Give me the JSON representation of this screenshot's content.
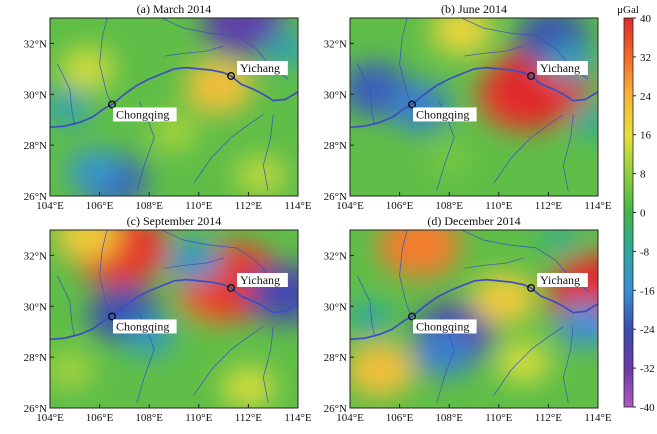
{
  "panels": [
    {
      "id": "a",
      "title": "(a)  March 2014"
    },
    {
      "id": "b",
      "title": "(b)  June 2014"
    },
    {
      "id": "c",
      "title": "(c)  September 2014"
    },
    {
      "id": "d",
      "title": "(d)  December 2014"
    }
  ],
  "axes": {
    "lon_ticks": [
      "104°E",
      "106°E",
      "108°E",
      "110°E",
      "112°E",
      "114°E"
    ],
    "lat_ticks": [
      "32°N",
      "30°N",
      "28°N",
      "26°N"
    ]
  },
  "places": {
    "chongqing": "Chongqing",
    "yichang": "Yichang"
  },
  "colorbar": {
    "unit": "μGal",
    "ticks": [
      "40",
      "32",
      "24",
      "16",
      "8",
      "0",
      "-8",
      "-16",
      "-24",
      "-32",
      "-40"
    ],
    "colors": [
      "#e02a2a",
      "#f26a2a",
      "#f6b43a",
      "#e6e03c",
      "#8fcf3e",
      "#43b649",
      "#2ea8a0",
      "#3a8fd6",
      "#3b4db0",
      "#6a3aa6",
      "#b05cc0"
    ]
  },
  "colors": {
    "field_base": "#5fbe48",
    "river": "#3b4fbf",
    "frame": "#222222"
  },
  "anomalies": [
    [
      {
        "lon": 105.5,
        "lat": 31.0,
        "value": 14
      },
      {
        "lon": 104.7,
        "lat": 29.5,
        "value": -10
      },
      {
        "lon": 106.5,
        "lat": 26.6,
        "value": -22
      },
      {
        "lon": 105.8,
        "lat": 27.0,
        "value": -14
      },
      {
        "lon": 111.8,
        "lat": 32.8,
        "value": -30
      },
      {
        "lon": 113.5,
        "lat": 31.8,
        "value": -10
      },
      {
        "lon": 110.8,
        "lat": 30.3,
        "value": 22
      },
      {
        "lon": 112.5,
        "lat": 26.8,
        "value": 12
      },
      {
        "lon": 109.0,
        "lat": 28.5,
        "value": 10
      }
    ],
    [
      {
        "lon": 105.0,
        "lat": 30.2,
        "value": -22
      },
      {
        "lon": 106.8,
        "lat": 29.5,
        "value": -18
      },
      {
        "lon": 108.5,
        "lat": 32.5,
        "value": 18
      },
      {
        "lon": 111.0,
        "lat": 30.0,
        "value": 36
      },
      {
        "lon": 111.6,
        "lat": 30.3,
        "value": 40
      },
      {
        "lon": 112.2,
        "lat": 32.2,
        "value": -24
      },
      {
        "lon": 112.8,
        "lat": 31.3,
        "value": -12
      },
      {
        "lon": 108.0,
        "lat": 27.5,
        "value": 6
      },
      {
        "lon": 113.7,
        "lat": 29.0,
        "value": -8
      }
    ],
    [
      {
        "lon": 106.8,
        "lat": 32.3,
        "value": 38
      },
      {
        "lon": 105.5,
        "lat": 32.8,
        "value": 20
      },
      {
        "lon": 107.0,
        "lat": 29.7,
        "value": -24
      },
      {
        "lon": 108.0,
        "lat": 28.8,
        "value": -12
      },
      {
        "lon": 110.8,
        "lat": 30.6,
        "value": 30
      },
      {
        "lon": 111.4,
        "lat": 31.0,
        "value": 38
      },
      {
        "lon": 109.8,
        "lat": 31.8,
        "value": -14
      },
      {
        "lon": 113.5,
        "lat": 30.5,
        "value": -26
      },
      {
        "lon": 104.8,
        "lat": 27.5,
        "value": 10
      },
      {
        "lon": 112.0,
        "lat": 26.8,
        "value": 14
      }
    ],
    [
      {
        "lon": 106.8,
        "lat": 32.4,
        "value": 30
      },
      {
        "lon": 108.2,
        "lat": 28.9,
        "value": -28
      },
      {
        "lon": 107.8,
        "lat": 28.2,
        "value": -18
      },
      {
        "lon": 114.0,
        "lat": 30.5,
        "value": 40
      },
      {
        "lon": 113.5,
        "lat": 29.3,
        "value": -16
      },
      {
        "lon": 104.8,
        "lat": 29.5,
        "value": -8
      },
      {
        "lon": 105.2,
        "lat": 27.5,
        "value": 22
      },
      {
        "lon": 111.0,
        "lat": 27.8,
        "value": 14
      },
      {
        "lon": 110.2,
        "lat": 30.3,
        "value": 20
      },
      {
        "lon": 112.5,
        "lat": 32.6,
        "value": -6
      }
    ]
  ]
}
